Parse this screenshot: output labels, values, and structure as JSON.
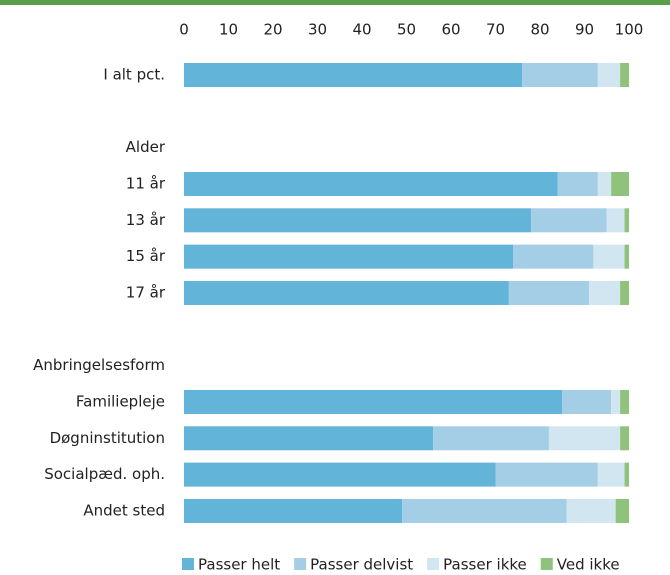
{
  "chart_data": {
    "type": "stacked_barh",
    "categories": [
      "I alt pct.",
      null,
      "Alder",
      "11 år",
      "13 år",
      "15 år",
      "17 år",
      null,
      "Anbringelsesform",
      "Familiepleje",
      "Døgninstitution",
      "Socialpæd. oph.",
      "Andet sted"
    ],
    "series": [
      {
        "name": "Passer helt",
        "color": "#63b4d9",
        "values": [
          76,
          null,
          null,
          84,
          78,
          74,
          73,
          null,
          null,
          85,
          56,
          70,
          49
        ]
      },
      {
        "name": "Passer delvist",
        "color": "#a4cde6",
        "values": [
          17,
          null,
          null,
          9,
          17,
          18,
          18,
          null,
          null,
          11,
          26,
          23,
          37
        ]
      },
      {
        "name": "Passer ikke",
        "color": "#d2e6f2",
        "values": [
          5,
          null,
          null,
          3,
          4,
          7,
          7,
          null,
          null,
          2,
          16,
          6,
          11
        ]
      },
      {
        "name": "Ved ikke",
        "color": "#8fc27a",
        "values": [
          2,
          null,
          null,
          4,
          1,
          1,
          2,
          null,
          null,
          2,
          2,
          1,
          3
        ]
      }
    ],
    "xlim": [
      0,
      100
    ],
    "xticks": [
      0,
      10,
      20,
      30,
      40,
      50,
      60,
      70,
      80,
      90,
      100
    ],
    "legend": "bottom"
  }
}
